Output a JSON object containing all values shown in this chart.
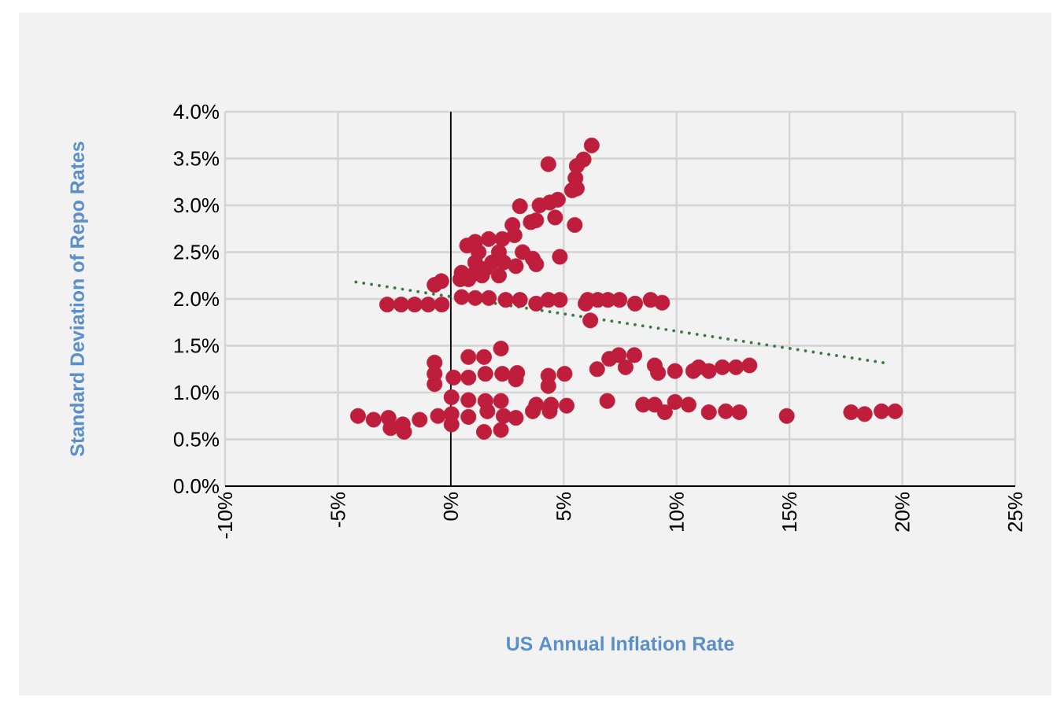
{
  "chart_data": {
    "type": "scatter",
    "xlabel": "US Annual Inflation Rate",
    "ylabel": "Standard Deviation of Repo Rates",
    "xlim": [
      -10,
      25
    ],
    "ylim": [
      0,
      4
    ],
    "xticks": [
      {
        "value": -10,
        "label": "-10%"
      },
      {
        "value": -5,
        "label": "-5%"
      },
      {
        "value": 0,
        "label": "0%"
      },
      {
        "value": 5,
        "label": "5%"
      },
      {
        "value": 10,
        "label": "10%"
      },
      {
        "value": 15,
        "label": "15%"
      },
      {
        "value": 20,
        "label": "20%"
      },
      {
        "value": 25,
        "label": "25%"
      }
    ],
    "yticks": [
      {
        "value": 0,
        "label": "0.0%"
      },
      {
        "value": 0.5,
        "label": "0.5%"
      },
      {
        "value": 1,
        "label": "1.0%"
      },
      {
        "value": 1.5,
        "label": "1.5%"
      },
      {
        "value": 2,
        "label": "2.0%"
      },
      {
        "value": 2.5,
        "label": "2.5%"
      },
      {
        "value": 3,
        "label": "3.0%"
      },
      {
        "value": 3.5,
        "label": "3.5%"
      },
      {
        "value": 4,
        "label": "4.0%"
      }
    ],
    "grid": true,
    "marker": "circle",
    "series": [
      {
        "type": "scatter",
        "color": "#be1e3c",
        "x": [
          6.24,
          4.32,
          5.88,
          5.58,
          5.52,
          5.58,
          5.37,
          5.49,
          4.83,
          4.74,
          4.38,
          3.93,
          3.06,
          4.62,
          3.54,
          3.78,
          2.73,
          2.82,
          2.28,
          1.68,
          1.08,
          0.72,
          1.23,
          2.13,
          3.18,
          3.63,
          3.78,
          2.88,
          2.34,
          1.53,
          1.08,
          0.48,
          0.42,
          0.78,
          1.38,
          2.13,
          1.08,
          1.83,
          -0.42,
          -0.72,
          -2.82,
          -2.2,
          -1.6,
          -1.0,
          -0.4,
          0.48,
          1.08,
          1.68,
          2.43,
          3.06,
          3.78,
          4.32,
          4.83,
          5.97,
          6.06,
          6.51,
          6.96,
          7.47,
          8.16,
          8.85,
          9.36,
          6.18,
          -0.72,
          -0.72,
          -0.72,
          0.12,
          0.78,
          0.78,
          1.47,
          1.53,
          2.22,
          2.28,
          2.94,
          2.88,
          4.32,
          4.32,
          5.04,
          6.48,
          7.02,
          7.44,
          7.74,
          8.13,
          9.03,
          9.18,
          9.93,
          10.74,
          10.98,
          11.43,
          12.03,
          12.63,
          13.23,
          -4.11,
          -3.42,
          -2.76,
          -2.67,
          -2.07,
          -2.13,
          -1.38,
          -0.57,
          0.03,
          0.03,
          0.03,
          0.78,
          0.78,
          1.47,
          1.53,
          1.62,
          2.22,
          2.22,
          2.34,
          2.88,
          3.63,
          3.78,
          4.38,
          4.44,
          5.13,
          6.93,
          8.52,
          9.03,
          9.48,
          9.93,
          10.53,
          11.43,
          12.18,
          12.78,
          14.88,
          17.73,
          18.33,
          19.08,
          19.68
        ],
        "values": [
          3.64,
          3.44,
          3.49,
          3.42,
          3.29,
          3.18,
          3.16,
          2.79,
          2.45,
          3.06,
          3.03,
          3.0,
          2.99,
          2.87,
          2.82,
          2.84,
          2.79,
          2.68,
          2.64,
          2.64,
          2.61,
          2.57,
          2.5,
          2.5,
          2.5,
          2.43,
          2.37,
          2.35,
          2.39,
          2.32,
          2.28,
          2.28,
          2.21,
          2.21,
          2.25,
          2.25,
          2.39,
          2.39,
          2.19,
          2.15,
          1.94,
          1.94,
          1.94,
          1.94,
          1.94,
          2.02,
          2.01,
          2.01,
          1.99,
          1.99,
          1.95,
          1.99,
          1.99,
          1.95,
          1.99,
          1.99,
          1.99,
          1.99,
          1.95,
          1.99,
          1.96,
          1.77,
          1.32,
          1.2,
          1.09,
          1.16,
          1.38,
          1.16,
          1.38,
          1.2,
          1.47,
          1.2,
          1.21,
          1.14,
          1.18,
          1.07,
          1.2,
          1.25,
          1.36,
          1.4,
          1.27,
          1.4,
          1.29,
          1.21,
          1.23,
          1.23,
          1.27,
          1.23,
          1.27,
          1.27,
          1.29,
          0.75,
          0.71,
          0.73,
          0.62,
          0.58,
          0.66,
          0.71,
          0.75,
          0.77,
          0.95,
          0.66,
          0.92,
          0.74,
          0.58,
          0.91,
          0.8,
          0.91,
          0.6,
          0.75,
          0.73,
          0.8,
          0.87,
          0.8,
          0.87,
          0.86,
          0.91,
          0.87,
          0.87,
          0.79,
          0.9,
          0.87,
          0.79,
          0.8,
          0.79,
          0.75,
          0.79,
          0.77,
          0.8,
          0.8
        ]
      },
      {
        "type": "line",
        "color": "#3a7d44",
        "marker": "none",
        "line_style": "dotted",
        "x": [
          -4.2,
          19.38
        ],
        "values": [
          2.18,
          1.31
        ]
      }
    ]
  }
}
